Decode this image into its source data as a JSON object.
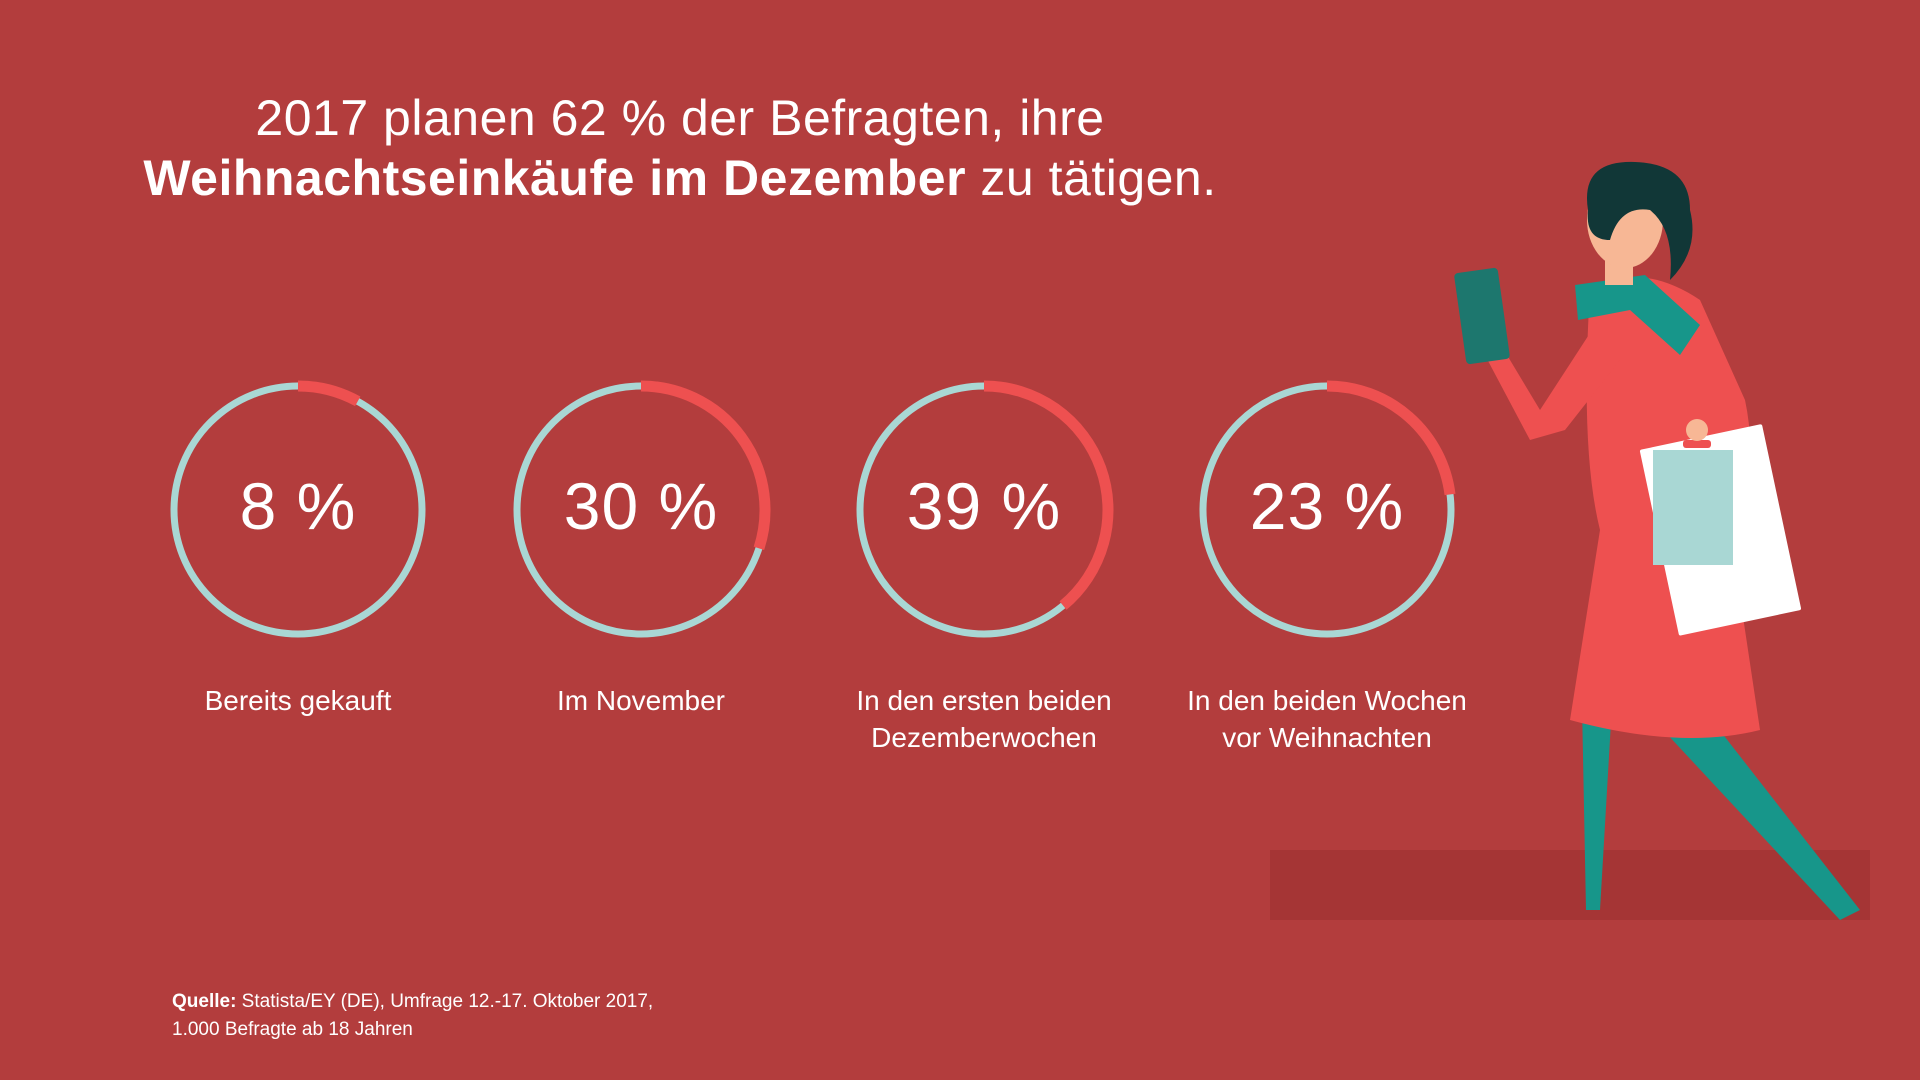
{
  "headline": {
    "line1": "2017 planen 62 % der Befragten, ihre",
    "line2_bold": "Weihnachtseinkäufe im Dezember",
    "line2_rest": " zu tätigen."
  },
  "colors": {
    "background": "#b33d3d",
    "ring_track": "#a9d7d4",
    "ring_fill": "#ee5050",
    "text": "#ffffff"
  },
  "chart_data": {
    "type": "pie",
    "subtype": "donut-rings",
    "unit": "%",
    "categories": [
      "Bereits gekauft",
      "Im November",
      "In den ersten beiden Dezemberwochen",
      "In den beiden Wochen vor Weihnachten"
    ],
    "values": [
      8,
      30,
      39,
      23
    ],
    "value_labels": [
      "8 %",
      "30 %",
      "39 %",
      "23 %"
    ],
    "category_label_lines": [
      [
        "Bereits gekauft"
      ],
      [
        "Im November"
      ],
      [
        "In den ersten beiden",
        "Dezemberwochen"
      ],
      [
        "In den beiden Wochen",
        "vor Weihnachten"
      ]
    ]
  },
  "source": {
    "label": "Quelle:",
    "line1": " Statista/EY (DE), Umfrage 12.-17. Oktober 2017,",
    "line2": "1.000 Befragte ab 18 Jahren"
  }
}
